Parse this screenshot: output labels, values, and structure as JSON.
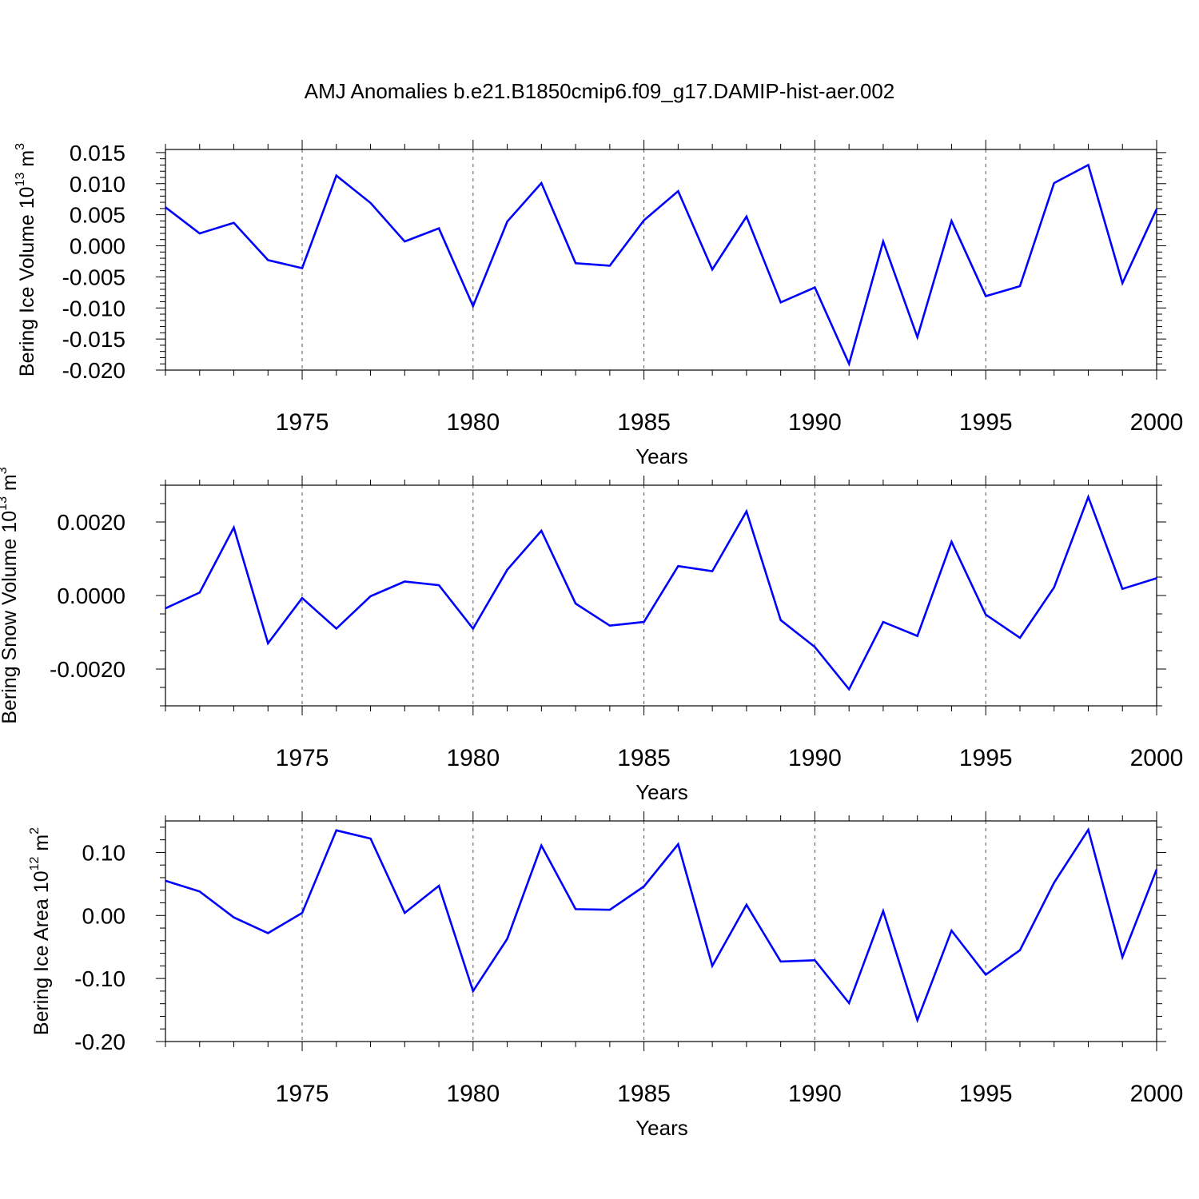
{
  "title": "AMJ Anomalies b.e21.B1850cmip6.f09_g17.DAMIP-hist-aer.002",
  "colors": {
    "line": "#0000ff",
    "axis": "#000000",
    "grid": "#555555"
  },
  "chart_data": [
    {
      "type": "line",
      "title": "AMJ Anomalies b.e21.B1850cmip6.f09_g17.DAMIP-hist-aer.002",
      "xlabel": "Years",
      "ylabel": {
        "text": "Bering Ice Volume 10",
        "sup": "13",
        "unit": " m",
        "unit_sup": "3"
      },
      "xlim": [
        1971,
        2000
      ],
      "ylim": [
        -0.02,
        0.0155
      ],
      "xticks": [
        1975,
        1980,
        1985,
        1990,
        1995,
        2000
      ],
      "yticks": [
        -0.02,
        -0.015,
        -0.01,
        -0.005,
        0.0,
        0.005,
        0.01,
        0.015
      ],
      "ytick_labels": [
        "-0.020",
        "-0.015",
        "-0.010",
        "-0.005",
        "0.000",
        "0.005",
        "0.010",
        "0.015"
      ],
      "grid": "x-dashed",
      "series": [
        {
          "x": [
            1971,
            1972,
            1973,
            1974,
            1975,
            1976,
            1977,
            1978,
            1979,
            1980,
            1981,
            1982,
            1983,
            1984,
            1985,
            1986,
            1987,
            1988,
            1989,
            1990,
            1991,
            1992,
            1993,
            1994,
            1995,
            1996,
            1997,
            1998,
            1999,
            2000
          ],
          "values": [
            0.0062,
            0.002,
            0.0037,
            -0.0023,
            -0.0036,
            0.0113,
            0.0069,
            0.0007,
            0.0028,
            -0.0097,
            0.0039,
            0.0101,
            -0.0028,
            -0.0032,
            0.0041,
            0.0088,
            -0.0038,
            0.0047,
            -0.0091,
            -0.0067,
            -0.019,
            0.0007,
            -0.0147,
            0.004,
            -0.0081,
            -0.0065,
            0.0101,
            0.013,
            -0.006,
            0.0059
          ]
        }
      ]
    },
    {
      "type": "line",
      "xlabel": "Years",
      "ylabel": {
        "text": "Bering Snow Volume 10",
        "sup": "13",
        "unit": " m",
        "unit_sup": "3"
      },
      "xlim": [
        1971,
        2000
      ],
      "ylim": [
        -0.003,
        0.003
      ],
      "xticks": [
        1975,
        1980,
        1985,
        1990,
        1995,
        2000
      ],
      "yticks": [
        -0.002,
        0.0,
        0.002
      ],
      "ytick_labels": [
        "-0.0020",
        "0.0000",
        "0.0020"
      ],
      "grid": "x-dashed",
      "series": [
        {
          "x": [
            1971,
            1972,
            1973,
            1974,
            1975,
            1976,
            1977,
            1978,
            1979,
            1980,
            1981,
            1982,
            1983,
            1984,
            1985,
            1986,
            1987,
            1988,
            1989,
            1990,
            1991,
            1992,
            1993,
            1994,
            1995,
            1996,
            1997,
            1998,
            1999,
            2000
          ],
          "values": [
            -0.00035,
            8e-05,
            0.00185,
            -0.0013,
            -7e-05,
            -0.0009,
            -2e-05,
            0.00038,
            0.00028,
            -0.0009,
            0.0007,
            0.00176,
            -0.00022,
            -0.00082,
            -0.00072,
            0.0008,
            0.00066,
            0.00229,
            -0.00067,
            -0.0014,
            -0.00255,
            -0.00072,
            -0.0011,
            0.00146,
            -0.00052,
            -0.00115,
            0.00022,
            0.00268,
            0.00018,
            0.00047
          ]
        }
      ]
    },
    {
      "type": "line",
      "xlabel": "Years",
      "ylabel": {
        "text": "Bering Ice Area 10",
        "sup": "12",
        "unit": " m",
        "unit_sup": "2"
      },
      "xlim": [
        1971,
        2000
      ],
      "ylim": [
        -0.2,
        0.15
      ],
      "xticks": [
        1975,
        1980,
        1985,
        1990,
        1995,
        2000
      ],
      "yticks": [
        -0.2,
        -0.1,
        0.0,
        0.1
      ],
      "ytick_labels": [
        "-0.20",
        "-0.10",
        "0.00",
        "0.10"
      ],
      "grid": "x-dashed",
      "series": [
        {
          "x": [
            1971,
            1972,
            1973,
            1974,
            1975,
            1976,
            1977,
            1978,
            1979,
            1980,
            1981,
            1982,
            1983,
            1984,
            1985,
            1986,
            1987,
            1988,
            1989,
            1990,
            1991,
            1992,
            1993,
            1994,
            1995,
            1996,
            1997,
            1998,
            1999,
            2000
          ],
          "values": [
            0.055,
            0.038,
            -0.003,
            -0.028,
            0.004,
            0.135,
            0.122,
            0.004,
            0.047,
            -0.12,
            -0.037,
            0.111,
            0.01,
            0.009,
            0.046,
            0.113,
            -0.08,
            0.017,
            -0.073,
            -0.071,
            -0.139,
            0.007,
            -0.166,
            -0.024,
            -0.094,
            -0.055,
            0.052,
            0.136,
            -0.066,
            0.073
          ]
        }
      ]
    }
  ]
}
